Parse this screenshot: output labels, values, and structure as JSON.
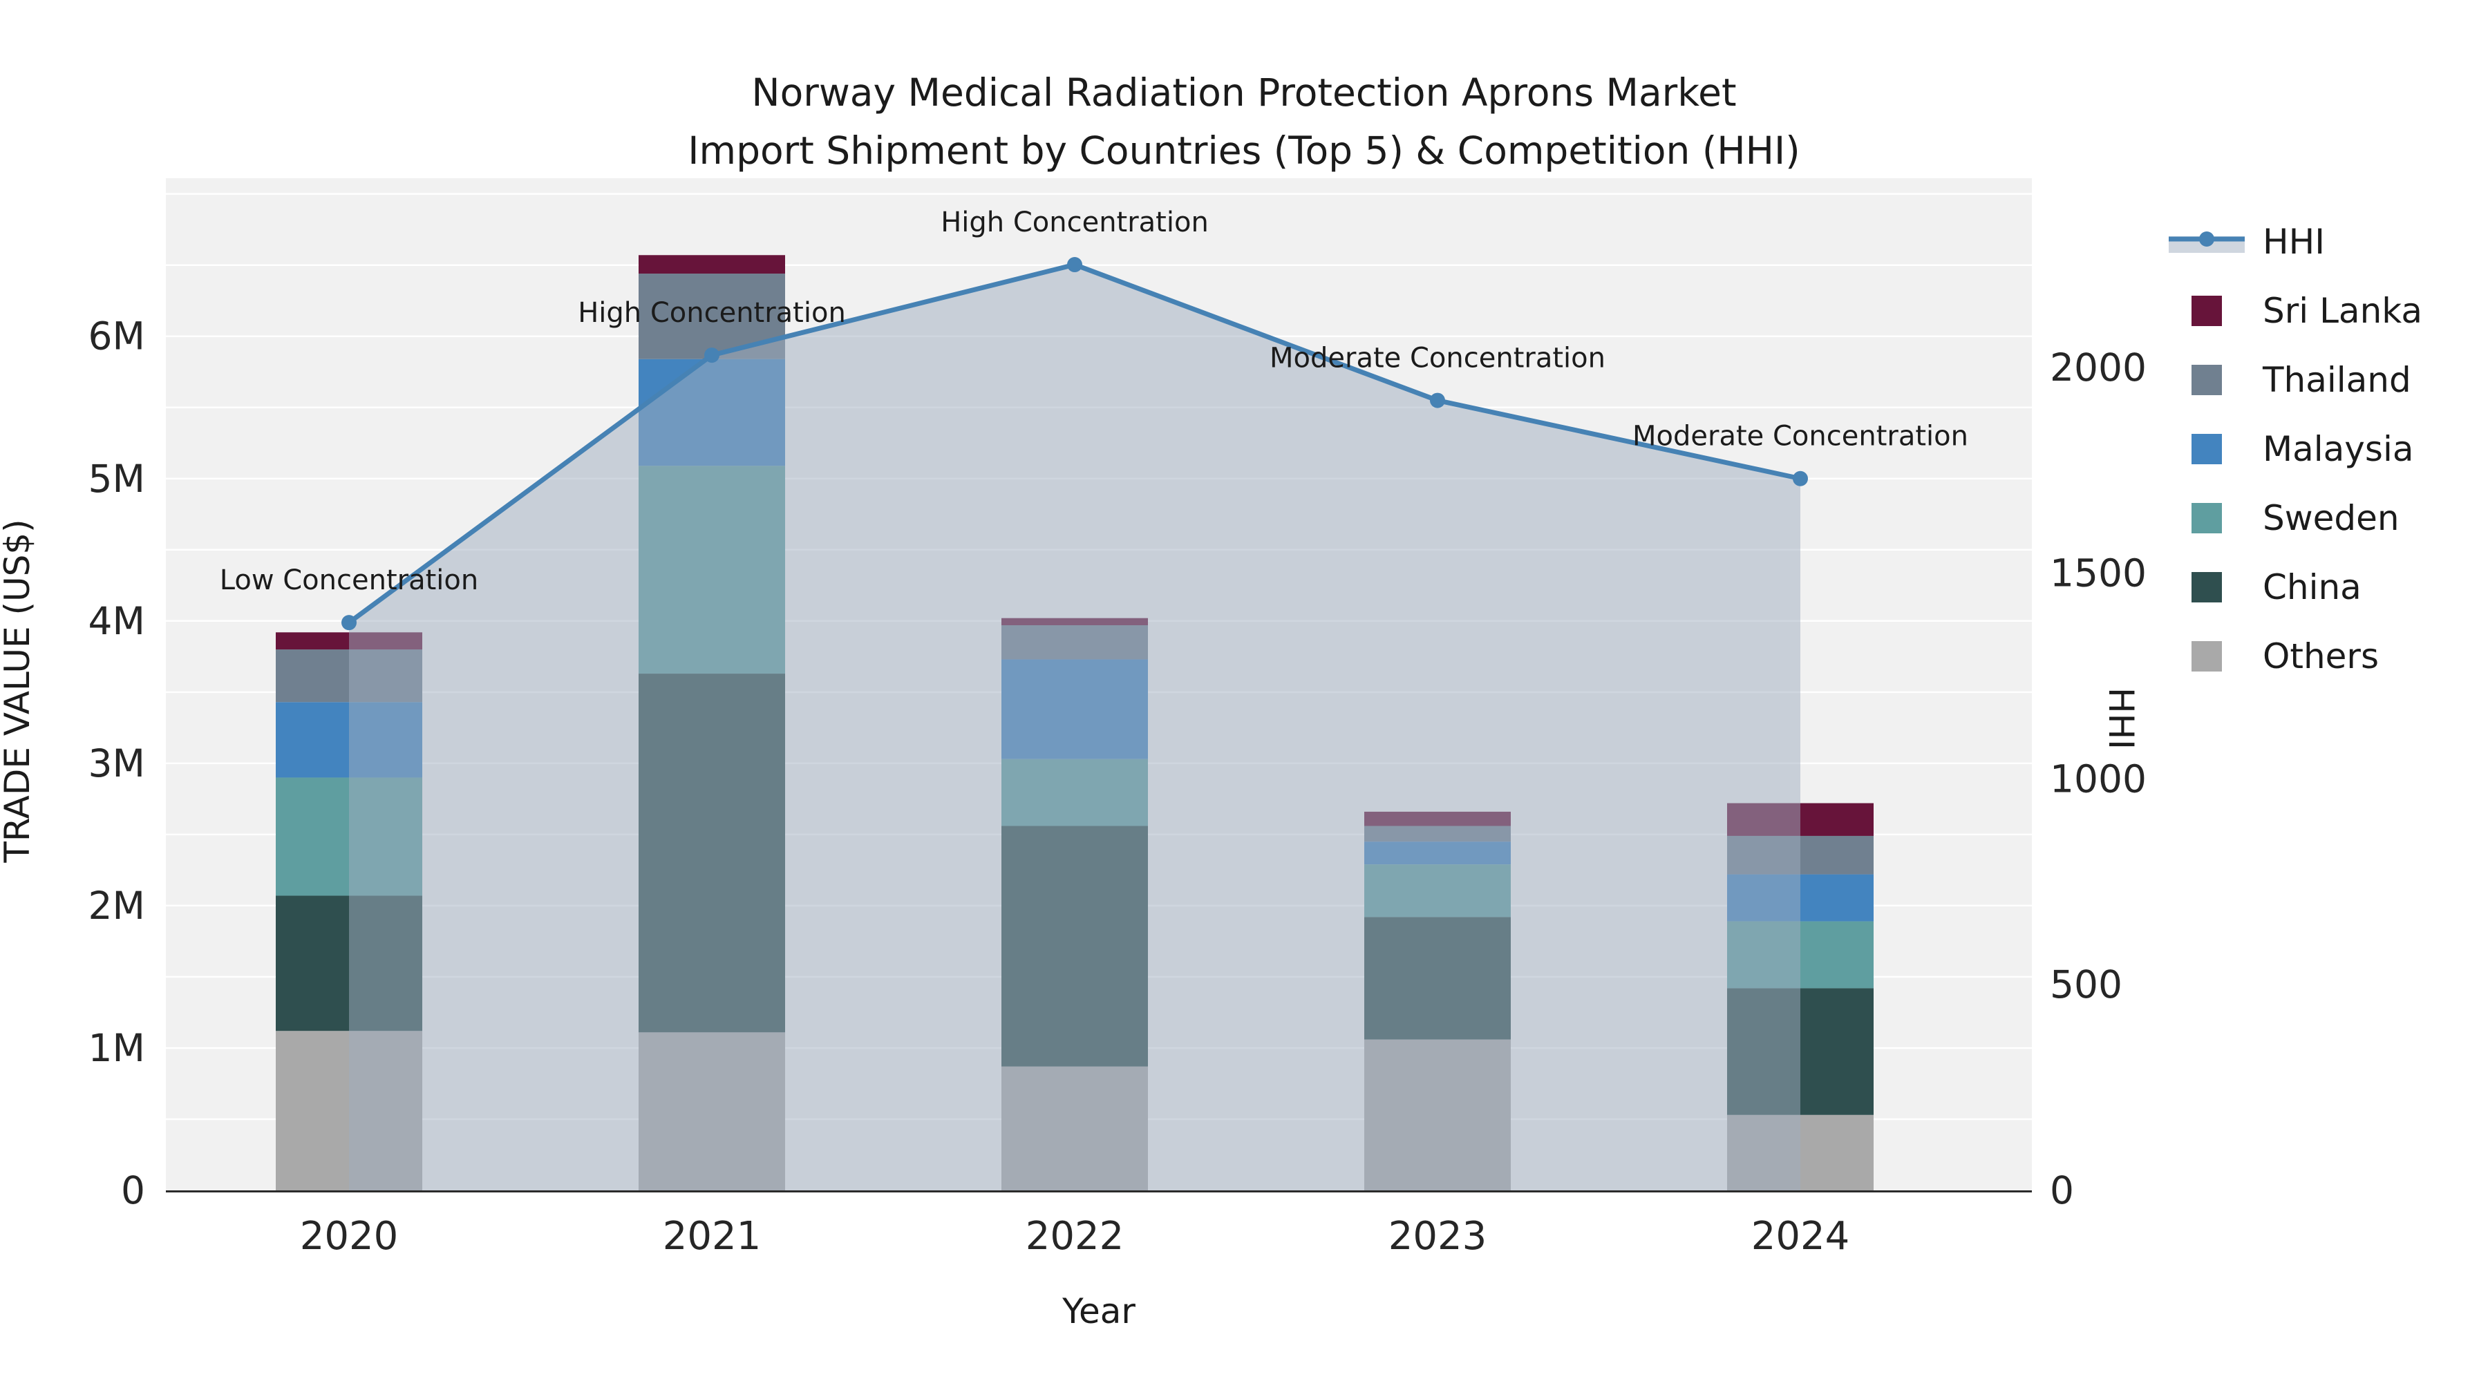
{
  "title": {
    "line1": "Norway Medical Radiation Protection Aprons Market",
    "line2": "Import Shipment by Countries (Top 5) & Competition (HHI)"
  },
  "axes": {
    "x": {
      "title": "Year",
      "ticks": [
        "2020",
        "2021",
        "2022",
        "2023",
        "2024"
      ]
    },
    "y": {
      "title": "TRADE VALUE (US$)",
      "ticks": [
        "0",
        "1M",
        "2M",
        "3M",
        "4M",
        "5M",
        "6M"
      ],
      "tick_values_musd": [
        0,
        1,
        2,
        3,
        4,
        5,
        6
      ]
    },
    "y2": {
      "title": "HHI",
      "ticks": [
        "0",
        "500",
        "1000",
        "1500",
        "2000"
      ],
      "tick_values": [
        0,
        500,
        1000,
        1500,
        2000
      ]
    }
  },
  "chart_data": {
    "type": "combo: stacked-bar (left axis) + line with markers and area fill (right axis)",
    "categories": [
      "2020",
      "2021",
      "2022",
      "2023",
      "2024"
    ],
    "bar_unit": "trade value, millions of US$",
    "series": [
      {
        "name": "Others",
        "color": "#A9A9A9",
        "values": [
          1.12,
          1.11,
          0.87,
          1.06,
          0.53
        ]
      },
      {
        "name": "China",
        "color": "#2F4F4F",
        "values": [
          0.95,
          2.52,
          1.69,
          0.86,
          0.89
        ]
      },
      {
        "name": "Sweden",
        "color": "#5F9EA0",
        "values": [
          0.83,
          1.46,
          0.47,
          0.37,
          0.47
        ]
      },
      {
        "name": "Malaysia",
        "color": "#4384BF",
        "values": [
          0.53,
          0.75,
          0.7,
          0.16,
          0.33
        ]
      },
      {
        "name": "Thailand",
        "color": "#708090",
        "values": [
          0.37,
          0.6,
          0.24,
          0.11,
          0.27
        ]
      },
      {
        "name": "Sri Lanka",
        "color": "#67143A",
        "values": [
          0.12,
          0.13,
          0.05,
          0.1,
          0.23
        ]
      }
    ],
    "bar_totals_musd": [
      3.92,
      6.57,
      4.02,
      2.66,
      2.72
    ],
    "line": {
      "name": "HHI",
      "color": "#4682B4",
      "fill_color": "rgba(160,174,192,0.5)",
      "values": [
        1380,
        2030,
        2250,
        1920,
        1730
      ]
    },
    "annotations": [
      {
        "category": "2020",
        "text": "Low Concentration"
      },
      {
        "category": "2021",
        "text": "High Concentration"
      },
      {
        "category": "2022",
        "text": "High Concentration"
      },
      {
        "category": "2023",
        "text": "Moderate Concentration"
      },
      {
        "category": "2024",
        "text": "Moderate Concentration"
      }
    ],
    "legend_order": [
      "HHI",
      "Sri Lanka",
      "Thailand",
      "Malaysia",
      "Sweden",
      "China",
      "Others"
    ],
    "ylim_left_musd": [
      0,
      7.11
    ],
    "ylim_right_hhi": [
      0,
      2460
    ],
    "grid": true,
    "legend_position": "right"
  },
  "styles": {
    "plot_bg": "#F1F1F1",
    "grid_color": "#FFFFFF",
    "axis_line_color": "#2B2B2B",
    "text_color": "#1B1B1B",
    "muted_overlay": "rgba(160,174,192,0.5)"
  }
}
